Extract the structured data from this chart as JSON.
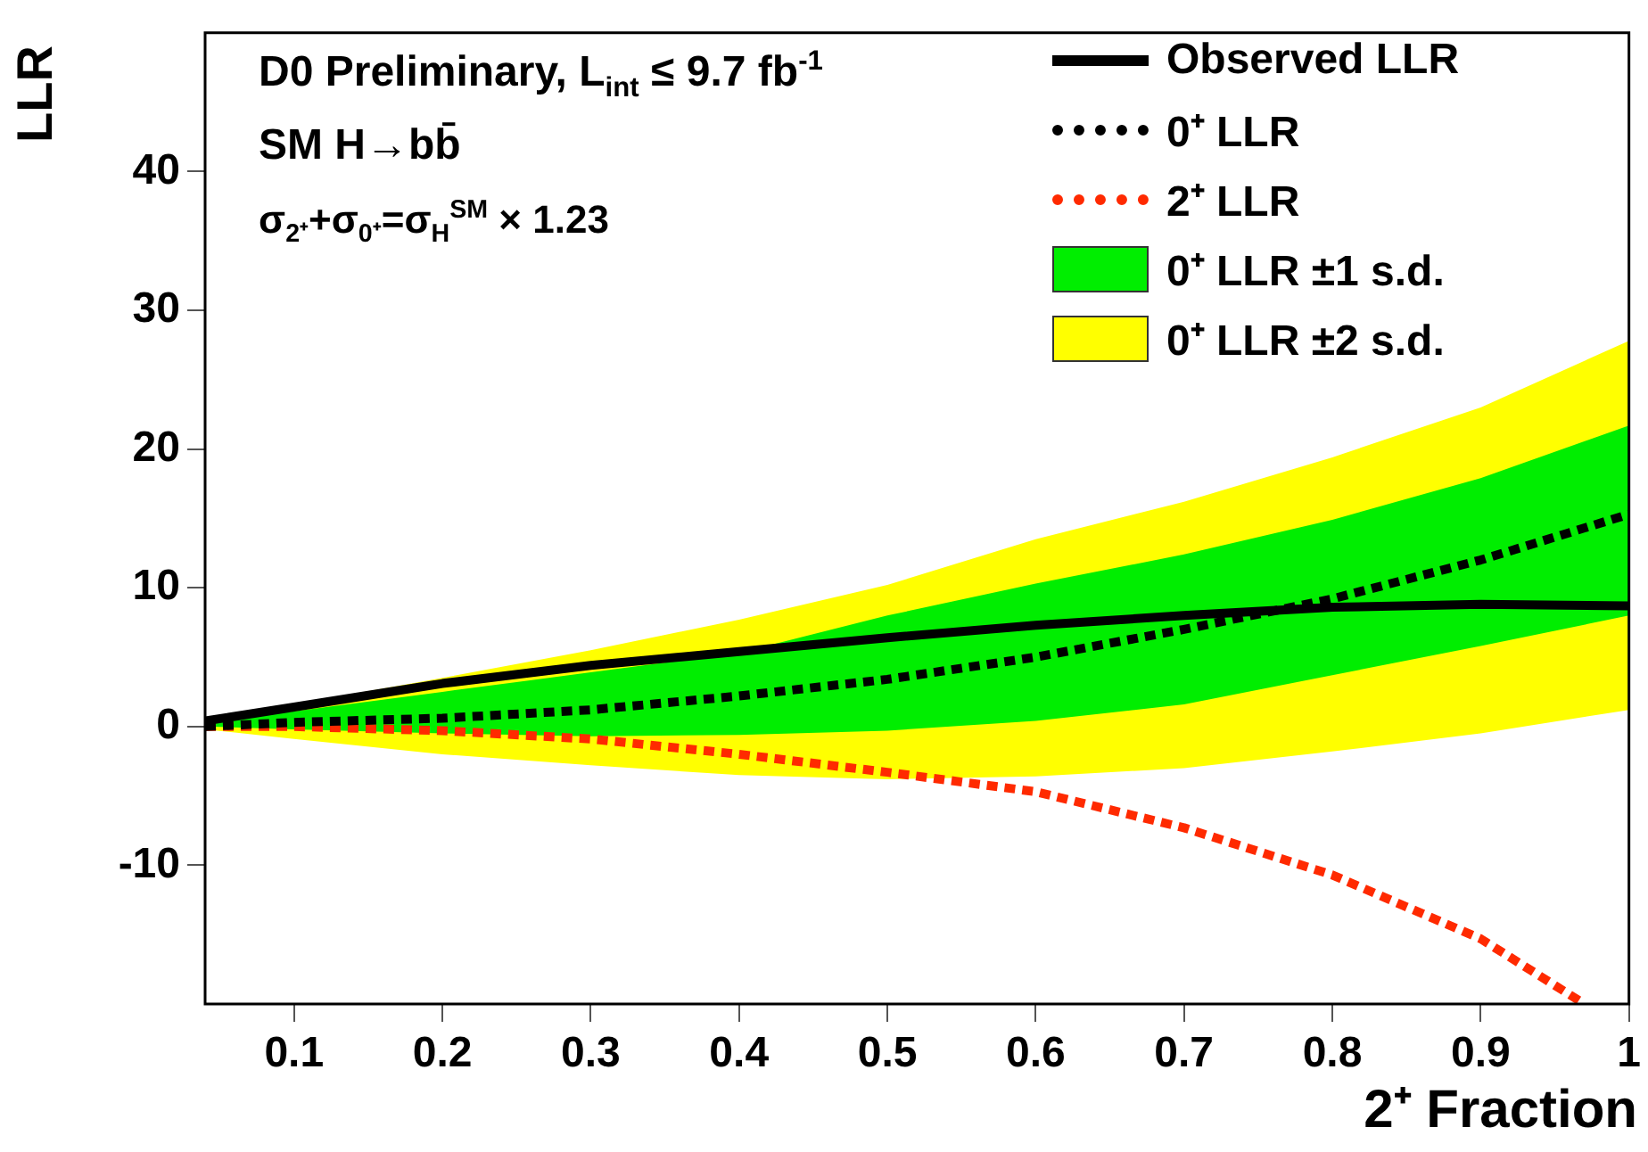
{
  "chart_data": {
    "type": "line",
    "annotations": [
      "D0 Preliminary, L$_{int}$ ≤ 9.7 fb$^{-1}$",
      "SM H→bb̄",
      "σ$_{2⁺}$+σ$_{0⁺}$=σ$_{H}$$^{SM}$ × 1.23"
    ],
    "xlabel": "2⁺ Fraction",
    "ylabel": "LLR",
    "x": [
      0.04,
      0.1,
      0.2,
      0.3,
      0.4,
      0.5,
      0.6,
      0.7,
      0.8,
      0.9,
      1.0
    ],
    "series": [
      {
        "name": "Observed LLR",
        "color": "#000000",
        "line_style": "solid",
        "values": [
          0.4,
          1.4,
          3.1,
          4.4,
          5.4,
          6.4,
          7.3,
          8.0,
          8.6,
          8.8,
          8.7
        ]
      },
      {
        "name": "0⁺ LLR",
        "color": "#000000",
        "line_style": "dotted",
        "values": [
          0,
          0.3,
          0.6,
          1.2,
          2.2,
          3.4,
          5.0,
          7.0,
          9.2,
          12.0,
          15.3
        ]
      },
      {
        "name": "2⁺ LLR",
        "color": "#ff2a00",
        "line_style": "dotted",
        "x": [
          0.04,
          0.1,
          0.2,
          0.3,
          0.4,
          0.5,
          0.6,
          0.7,
          0.8,
          0.9,
          0.97
        ],
        "values": [
          0,
          0,
          -0.3,
          -0.9,
          -2.0,
          -3.3,
          -4.7,
          -7.3,
          -10.7,
          -15.3,
          -20
        ]
      },
      {
        "name": "0⁺ LLR ±1 s.d.",
        "color": "#00ee00",
        "values": [
          null,
          null,
          null,
          null,
          null,
          null,
          null,
          null,
          null,
          null,
          null
        ],
        "lower": [
          0,
          -0.2,
          -0.5,
          -0.7,
          -0.6,
          -0.3,
          0.4,
          1.6,
          3.7,
          5.8,
          8.0
        ],
        "upper": [
          0.3,
          1.1,
          2.5,
          3.9,
          5.3,
          8.0,
          10.3,
          12.4,
          14.9,
          17.9,
          21.7
        ]
      },
      {
        "name": "0⁺ LLR ±2 s.d.",
        "color": "#ffff00",
        "values": [
          null,
          null,
          null,
          null,
          null,
          null,
          null,
          null,
          null,
          null,
          null
        ],
        "lower": [
          -0.2,
          -0.9,
          -2.0,
          -2.8,
          -3.5,
          -3.8,
          -3.6,
          -3.0,
          -1.8,
          -0.5,
          1.2
        ],
        "upper": [
          0.3,
          1.6,
          3.5,
          5.5,
          7.7,
          10.2,
          13.5,
          16.2,
          19.4,
          23.0,
          27.8
        ]
      }
    ],
    "xlim": [
      0.04,
      1
    ],
    "xticks": [
      0.1,
      0.2,
      0.3,
      0.4,
      0.5,
      0.6,
      0.7,
      0.8,
      0.9,
      1
    ],
    "ylim": [
      -20,
      50
    ],
    "yticks": [
      -10,
      0,
      10,
      20,
      30,
      40
    ],
    "grid": false,
    "legend": "top right",
    "marker": "none"
  }
}
